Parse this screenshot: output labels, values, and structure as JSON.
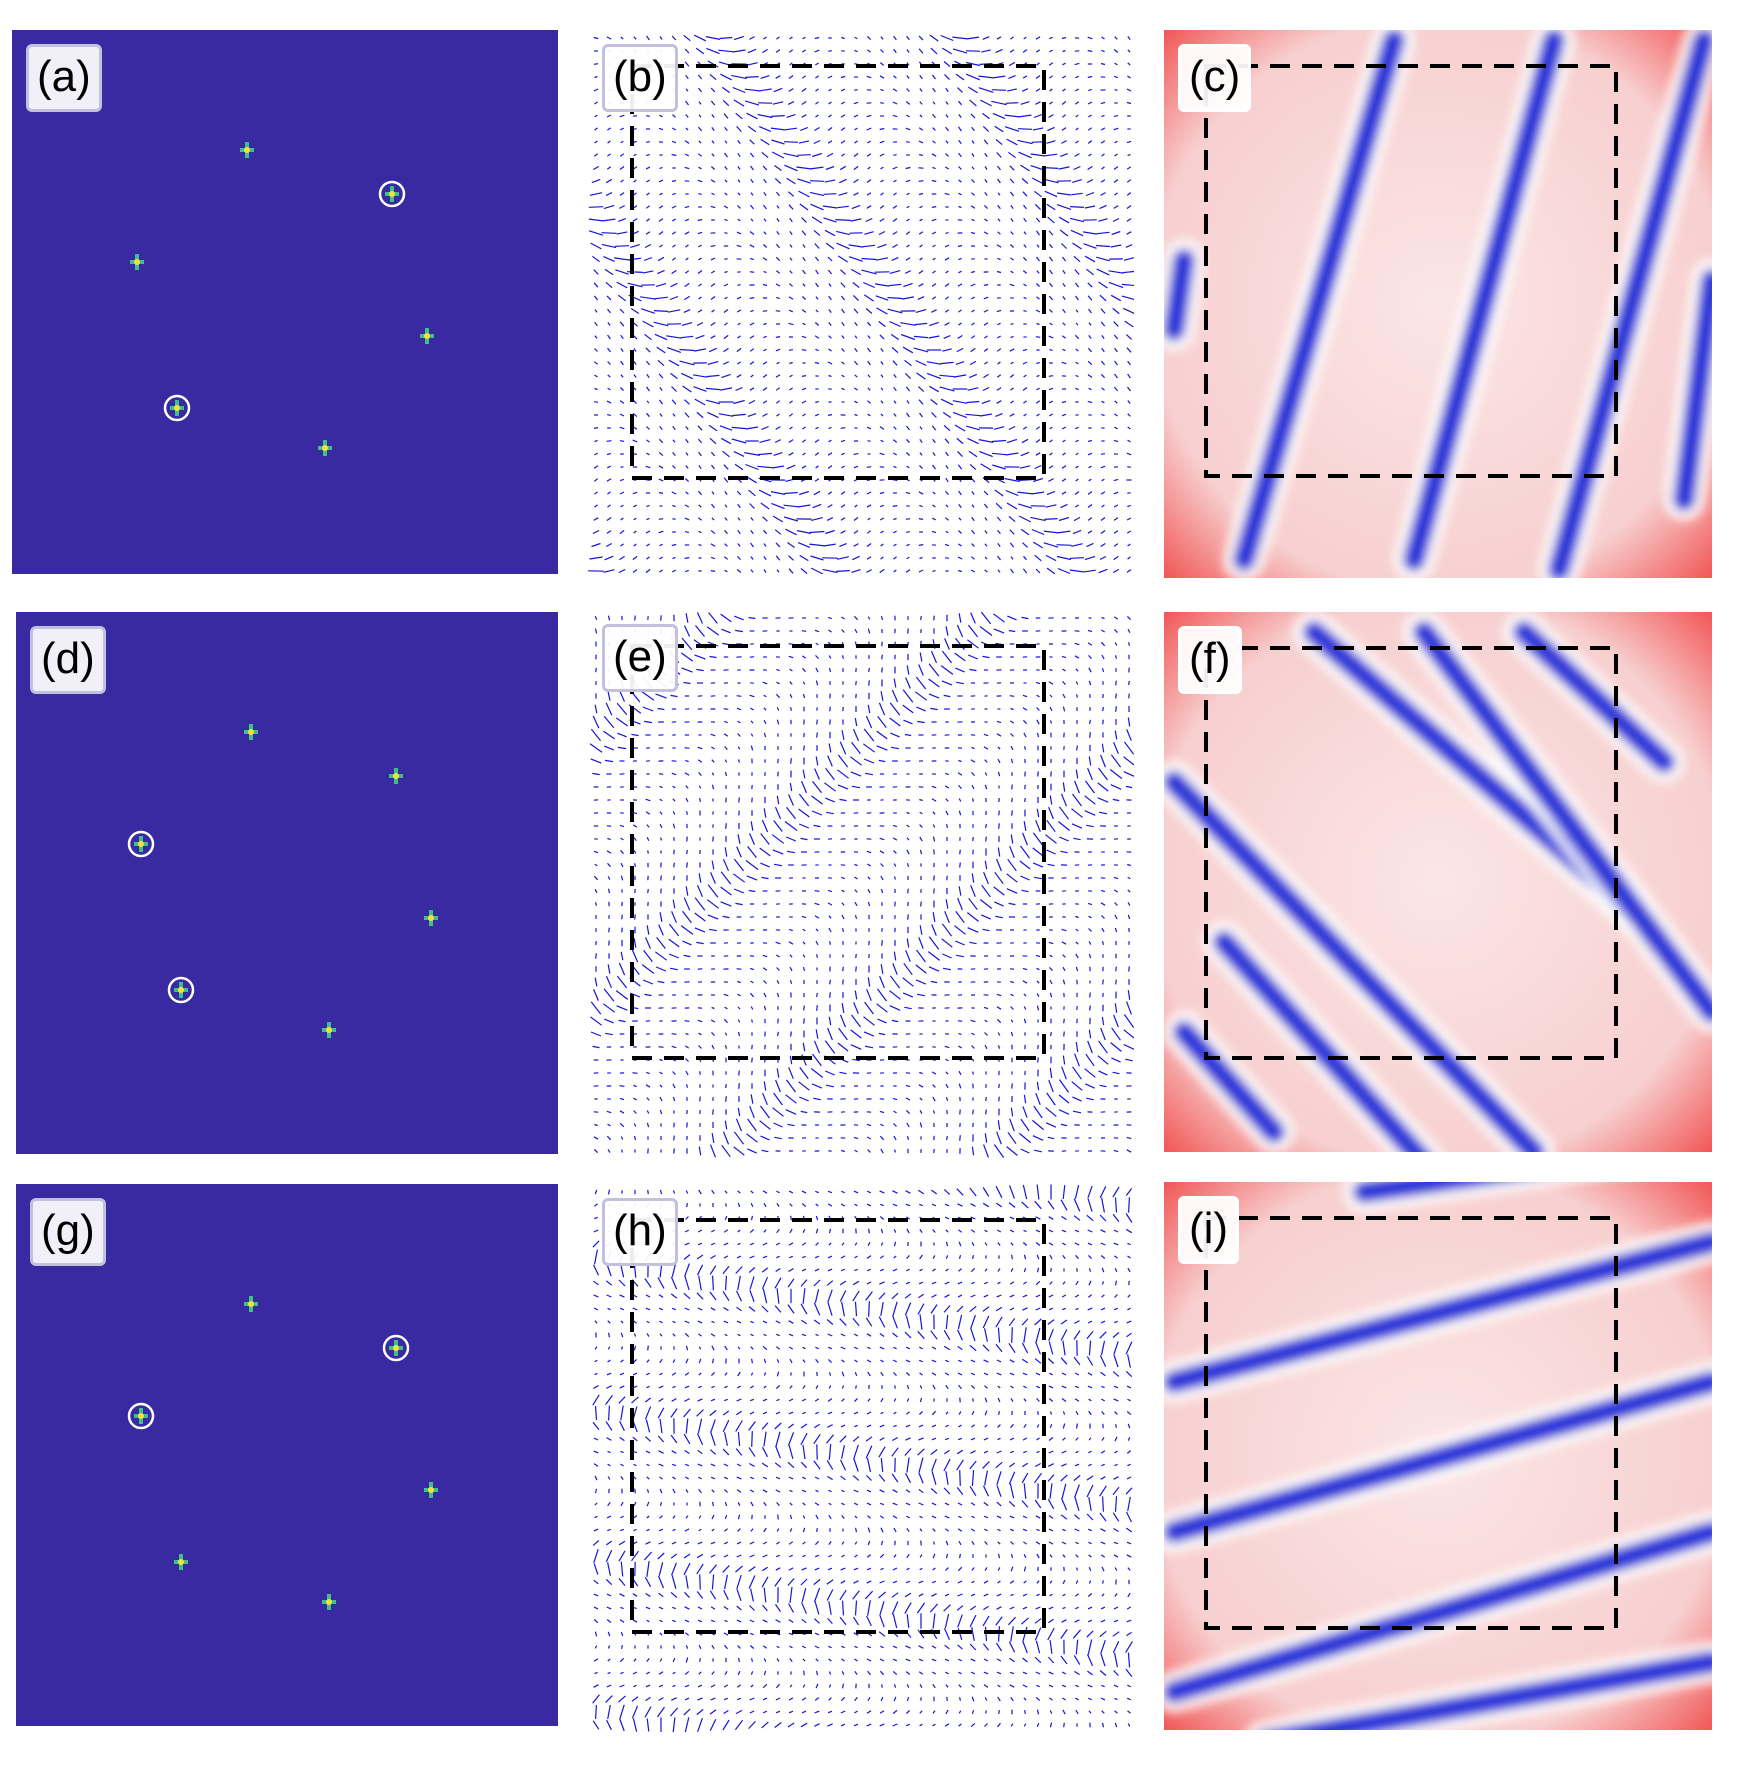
{
  "colors": {
    "fft_background": "#3a2aa1",
    "spot_yellow": "#f4e23a",
    "spot_green": "#3dc08a",
    "arrow_blue": "#1515d8",
    "stripe_blue": "#2a34d8",
    "domain_red": "#f25a5a",
    "dashed_box": "#000000",
    "circle_marker": "#ffffff"
  },
  "rows": [
    {
      "fft": {
        "label": "(a)",
        "circled_spots": [
          1,
          4
        ]
      },
      "vector": {
        "label": "(b)",
        "pattern": "stripes tilted from lower-left to upper-right"
      },
      "field": {
        "label": "(c)",
        "pattern": "stripes tilted from lower-left to upper-right"
      }
    },
    {
      "fft": {
        "label": "(d)",
        "circled_spots": [
          2,
          4
        ]
      },
      "vector": {
        "label": "(e)",
        "pattern": "stripes tilted from upper-left to lower-right"
      },
      "field": {
        "label": "(f)",
        "pattern": "stripes tilted from upper-left to lower-right"
      }
    },
    {
      "fft": {
        "label": "(g)",
        "circled_spots": [
          1,
          2
        ]
      },
      "vector": {
        "label": "(h)",
        "pattern": "stripes nearly horizontal"
      },
      "field": {
        "label": "(i)",
        "pattern": "stripes nearly horizontal"
      }
    }
  ],
  "icons": {
    "spot": "bragg-peak-icon",
    "circle": "circle-marker-icon"
  }
}
